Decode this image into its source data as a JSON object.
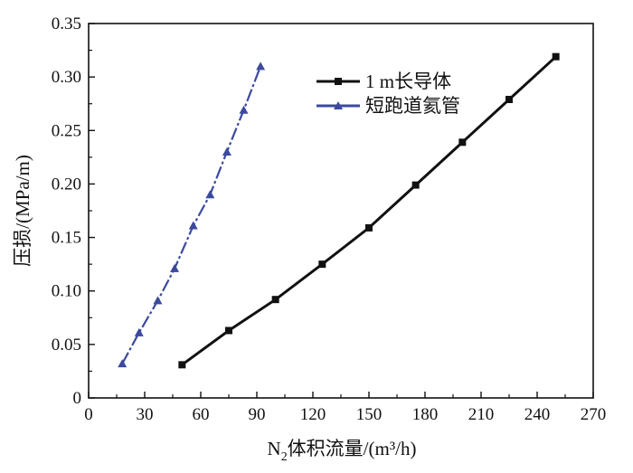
{
  "chart_data": {
    "type": "line",
    "title": "",
    "xlabel": {
      "main": "N",
      "sub": "2",
      "rest": "体积流量/(m³/h)"
    },
    "ylabel": "压损/(MPa/m)",
    "xlim": [
      0,
      270
    ],
    "ylim": [
      0,
      0.35
    ],
    "xticks": [
      "0",
      "30",
      "60",
      "90",
      "120",
      "150",
      "180",
      "210",
      "240",
      "270"
    ],
    "yticks": [
      "0",
      "0.05",
      "0.10",
      "0.15",
      "0.20",
      "0.25",
      "0.30",
      "0.35"
    ],
    "grid": false,
    "legend_position": "top-right",
    "series": [
      {
        "name": "1 m长导体",
        "color": "#111111",
        "marker": "square",
        "line_style": "solid",
        "x": [
          50,
          75,
          100,
          125,
          150,
          175,
          200,
          225,
          250
        ],
        "y": [
          0.031,
          0.063,
          0.092,
          0.125,
          0.159,
          0.199,
          0.239,
          0.279,
          0.319
        ]
      },
      {
        "name": "短跑道氦管",
        "color": "#3b4a9e",
        "marker": "triangle",
        "line_style": "dashdot",
        "x": [
          18,
          27,
          37,
          46,
          56,
          65,
          74,
          83,
          92
        ],
        "y": [
          0.032,
          0.061,
          0.091,
          0.121,
          0.161,
          0.19,
          0.23,
          0.269,
          0.31
        ]
      }
    ]
  }
}
